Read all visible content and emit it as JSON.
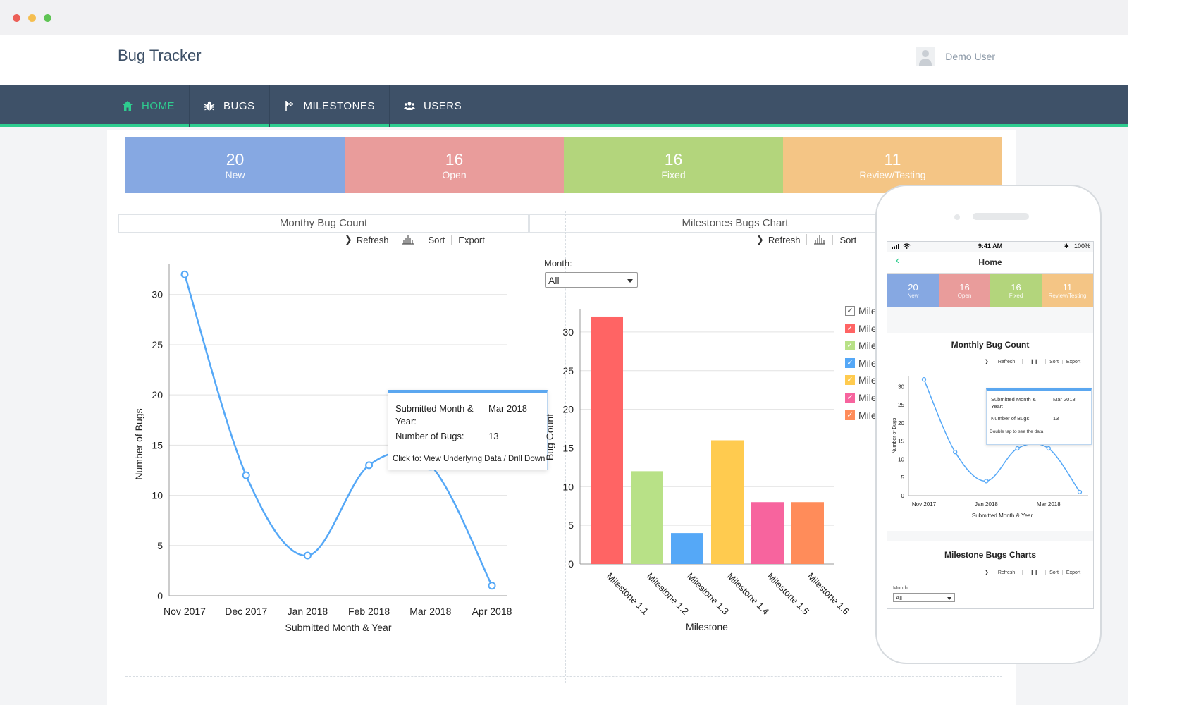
{
  "window": {
    "dots": [
      "#ec5f57",
      "#f5be4f",
      "#5fc454"
    ]
  },
  "header": {
    "title": "Bug Tracker",
    "user": "Demo User"
  },
  "nav": [
    {
      "label": "HOME",
      "icon": "home-icon",
      "active": true
    },
    {
      "label": "BUGS",
      "icon": "bug-icon",
      "active": false
    },
    {
      "label": "MILESTONES",
      "icon": "flag-icon",
      "active": false
    },
    {
      "label": "USERS",
      "icon": "users-icon",
      "active": false
    }
  ],
  "status": [
    {
      "count": "20",
      "label": "New",
      "color": "#86a8e2"
    },
    {
      "count": "16",
      "label": "Open",
      "color": "#e99c9b"
    },
    {
      "count": "16",
      "label": "Fixed",
      "color": "#b3d57c"
    },
    {
      "count": "11",
      "label": "Review/Testing",
      "color": "#f4c585"
    }
  ],
  "panels": {
    "monthly_title": "Monthy Bug Count",
    "milestone_title": "Milestones Bugs Chart"
  },
  "toolbar": {
    "refresh": "Refresh",
    "sort": "Sort",
    "export": "Export"
  },
  "tooltip": {
    "key1": "Submitted Month & Year:",
    "val1": "Mar 2018",
    "key2": "Number of Bugs:",
    "val2": "13",
    "hint": "Click to: View Underlying Data / Drill Down"
  },
  "filter": {
    "label": "Month:",
    "value": "All"
  },
  "legend": {
    "text": "Mile",
    "colors": [
      "#ffffff",
      "#ff6464",
      "#b8e187",
      "#55a8f7",
      "#ffcb4f",
      "#f7649e",
      "#ff8c5a"
    ]
  },
  "phone": {
    "time": "9:41 AM",
    "battery": "100%",
    "title": "Home",
    "monthly_title": "Monthly Bug Count",
    "milestone_title": "Milestone Bugs Charts",
    "tooltip_hint": "Double tap to see the data",
    "month_label": "Month:",
    "month_value": "All"
  },
  "chart_data": [
    {
      "type": "line",
      "title": "Monthy Bug Count",
      "xlabel": "Submitted Month & Year",
      "ylabel": "Number of Bugs",
      "categories": [
        "Nov 2017",
        "Dec 2017",
        "Jan 2018",
        "Feb 2018",
        "Mar 2018",
        "Apr 2018"
      ],
      "values": [
        32,
        12,
        4,
        13,
        13,
        1
      ],
      "ylim": [
        0,
        33
      ],
      "yticks": [
        0,
        5,
        10,
        15,
        20,
        25,
        30
      ],
      "grid": true,
      "color": "#55a8f7"
    },
    {
      "type": "bar",
      "title": "Milestones Bugs Chart",
      "xlabel": "Milestone",
      "ylabel": "Bug Count",
      "categories": [
        "Milestone 1.1",
        "Milestone 1.2",
        "Milestone 1.3",
        "Milestone 1.4",
        "Milestone 1.5",
        "Milestone 1.6"
      ],
      "values": [
        32,
        12,
        4,
        16,
        8,
        8
      ],
      "colors": [
        "#ff6464",
        "#b8e187",
        "#55a8f7",
        "#ffcb4f",
        "#f7649e",
        "#ff8c5a"
      ],
      "ylim": [
        0,
        33
      ],
      "yticks": [
        0,
        5,
        10,
        15,
        20,
        25,
        30
      ],
      "grid": true
    },
    {
      "type": "line",
      "title": "Monthly Bug Count",
      "xlabel": "Submitted Month & Year",
      "ylabel": "Number of Bugs",
      "categories": [
        "Nov 2017",
        "Dec 2017",
        "Jan 2018",
        "Feb 2018",
        "Mar 2018",
        "Apr 2018"
      ],
      "tick_labels": [
        "Nov 2017",
        "",
        "Jan 2018",
        "",
        "Mar 2018",
        ""
      ],
      "values": [
        32,
        12,
        4,
        13,
        13,
        1
      ],
      "ylim": [
        0,
        33
      ],
      "yticks": [
        0,
        5,
        10,
        15,
        20,
        25,
        30
      ],
      "color": "#55a8f7"
    }
  ]
}
